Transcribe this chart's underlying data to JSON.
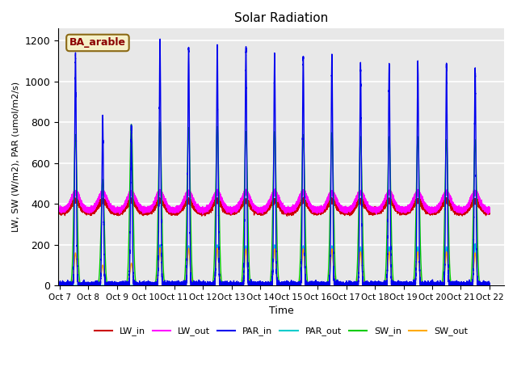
{
  "title": "Solar Radiation",
  "ylabel": "LW, SW (W/m2), PAR (umol/m2/s)",
  "xlabel": "Time",
  "annotation": "BA_arable",
  "ylim": [
    0,
    1260
  ],
  "background_color": "#e8e8e8",
  "grid_color": "white",
  "series": {
    "LW_in": {
      "color": "#cc0000",
      "lw": 1.0
    },
    "LW_out": {
      "color": "#ff00ff",
      "lw": 1.0
    },
    "PAR_in": {
      "color": "#0000ee",
      "lw": 1.0
    },
    "PAR_out": {
      "color": "#00cccc",
      "lw": 1.0
    },
    "SW_in": {
      "color": "#00cc00",
      "lw": 1.0
    },
    "SW_out": {
      "color": "#ffaa00",
      "lw": 1.0
    }
  },
  "xtick_labels": [
    "Oct 7",
    "Oct 8",
    "Oct 9",
    "Oct 10",
    "Oct 11",
    "Oct 12",
    "Oct 13",
    "Oct 14",
    "Oct 15",
    "Oct 16",
    "Oct 17",
    "Oct 18",
    "Oct 19",
    "Oct 20",
    "Oct 21",
    "Oct 22"
  ],
  "xtick_positions": [
    0,
    1,
    2,
    3,
    4,
    5,
    6,
    7,
    8,
    9,
    10,
    11,
    12,
    13,
    14,
    15
  ],
  "PAR_in_peaks": [
    1130,
    820,
    780,
    1195,
    1165,
    1170,
    1165,
    1130,
    1115,
    1120,
    1085,
    1085,
    1085,
    1080,
    1065
  ],
  "PAR_out_peaks": [
    0,
    0,
    0,
    200,
    195,
    200,
    195,
    200,
    195,
    195,
    190,
    190,
    190,
    190,
    205
  ],
  "SW_in_peaks": [
    740,
    520,
    790,
    800,
    775,
    780,
    755,
    755,
    740,
    750,
    730,
    730,
    730,
    715,
    715
  ],
  "SW_out_peaks": [
    160,
    100,
    110,
    185,
    183,
    183,
    180,
    180,
    180,
    180,
    165,
    165,
    165,
    165,
    160
  ],
  "LW_in_base": 360,
  "LW_out_base": 370,
  "LW_daytime_bump": 55,
  "LW_out_daytime_bump": 85,
  "spike_sigma": 0.028,
  "PAR_out_sigma": 0.045,
  "SW_sigma": 0.055,
  "SW_out_sigma": 0.05,
  "n_days": 15,
  "n_points_per_day": 1440
}
